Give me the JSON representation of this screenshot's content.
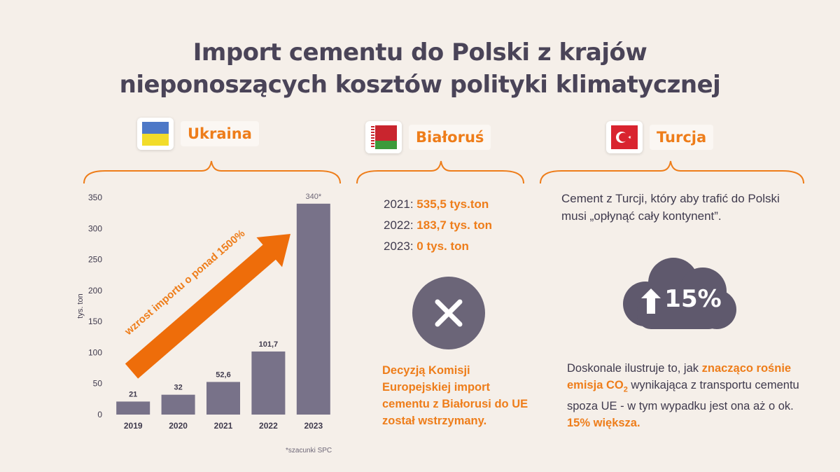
{
  "title_line1": "Import cementu do Polski z krajów",
  "title_line2": "nieponoszących kosztów polityki klimatycznej",
  "countries": [
    {
      "name": "Ukraina"
    },
    {
      "name": "Białoruś"
    },
    {
      "name": "Turcja"
    }
  ],
  "chart_data": {
    "type": "bar",
    "categories": [
      "2019",
      "2020",
      "2021",
      "2022",
      "2023"
    ],
    "values": [
      21,
      32,
      52.6,
      101.7,
      340
    ],
    "value_labels": [
      "21",
      "32",
      "52,6",
      "101,7",
      "340*"
    ],
    "ylabel": "tys. ton",
    "ylim": [
      0,
      350
    ],
    "yticks": [
      "0",
      "50",
      "100",
      "150",
      "200",
      "250",
      "300",
      "350"
    ],
    "bar_color": "#787289",
    "arrow_annotation": "wzrost importu  o ponad 1500%",
    "arrow_color": "#ee6d0a",
    "footnote": "*szacunki SPC"
  },
  "belarus": {
    "rows": [
      {
        "year": "2021:",
        "value": "535,5 tys.ton"
      },
      {
        "year": "2022:",
        "value": "183,7 tys. ton"
      },
      {
        "year": "2023:",
        "value": "0 tys. ton"
      }
    ],
    "icon": "x-icon",
    "decision": "Decyzją Komisji Europejskiej import cementu z Białorusi do UE został wstrzymany."
  },
  "turkey": {
    "text": "Cement z Turcji, który aby trafić  do Polski musi „opłynąć cały kontynent”.",
    "cloud_value": "15%",
    "cloud_icon": "arrow-up-icon",
    "bottom_part1": "Doskonale ilustruje to,  jak ",
    "bottom_highlight1": "znacząco rośnie emisja CO",
    "bottom_sub": "2",
    "bottom_part2": " wynikająca z transportu cementu spoza UE - w tym wypadku jest ona aż o ok. ",
    "bottom_highlight2": "15% większa."
  },
  "colors": {
    "accent": "#ee7d1a",
    "dark": "#4a4458",
    "bg": "#f5efe9"
  }
}
